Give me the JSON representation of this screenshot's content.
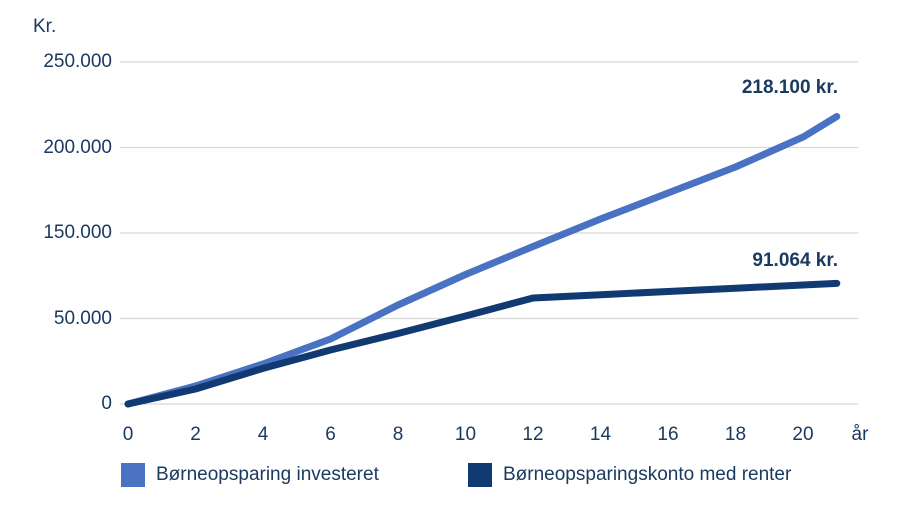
{
  "chart_data": {
    "type": "line",
    "y_axis": {
      "unit_label": "Kr.",
      "tick_labels": [
        "250.000",
        "200.000",
        "150.000",
        "50.000",
        "0"
      ],
      "tick_values": [
        250000,
        200000,
        150000,
        50000,
        0
      ]
    },
    "x_axis": {
      "unit_label": "år",
      "tick_labels": [
        "0",
        "2",
        "4",
        "6",
        "8",
        "10",
        "12",
        "14",
        "16",
        "18",
        "20"
      ],
      "tick_values": [
        0,
        2,
        4,
        6,
        8,
        10,
        12,
        14,
        16,
        18,
        20
      ],
      "max": 21
    },
    "grid": true,
    "legend_position": "bottom",
    "series": [
      {
        "name": "Børneopsparing investeret",
        "color": "#4a72c3",
        "x": [
          0,
          2,
          4,
          6,
          8,
          10,
          12,
          14,
          16,
          18,
          20,
          21
        ],
        "values": [
          0,
          10500,
          23400,
          38000,
          65800,
          101500,
          134200,
          158200,
          173400,
          188600,
          206100,
          218100
        ],
        "end_label": "218.100 kr.",
        "end_value": 218100
      },
      {
        "name": "Børneopsparingskonto med renter",
        "color": "#113a72",
        "x": [
          0,
          2,
          4,
          6,
          8,
          10,
          12,
          14,
          16,
          18,
          20,
          21
        ],
        "values": [
          0,
          8800,
          20800,
          31600,
          41200,
          52900,
          74000,
          77800,
          81600,
          85400,
          89200,
          91064
        ],
        "end_label": "91.064 kr.",
        "end_value": 91064
      }
    ]
  },
  "legend": {
    "items": [
      {
        "label": "Børneopsparing investeret",
        "color": "#4a72c3"
      },
      {
        "label": "Børneopsparingskonto med renter",
        "color": "#113a72"
      }
    ]
  },
  "colors": {
    "text": "#1b3a60",
    "gridline": "#d8d8d8",
    "background": "#ffffff",
    "series_invested": "#4a72c3",
    "series_konto": "#113a72"
  }
}
